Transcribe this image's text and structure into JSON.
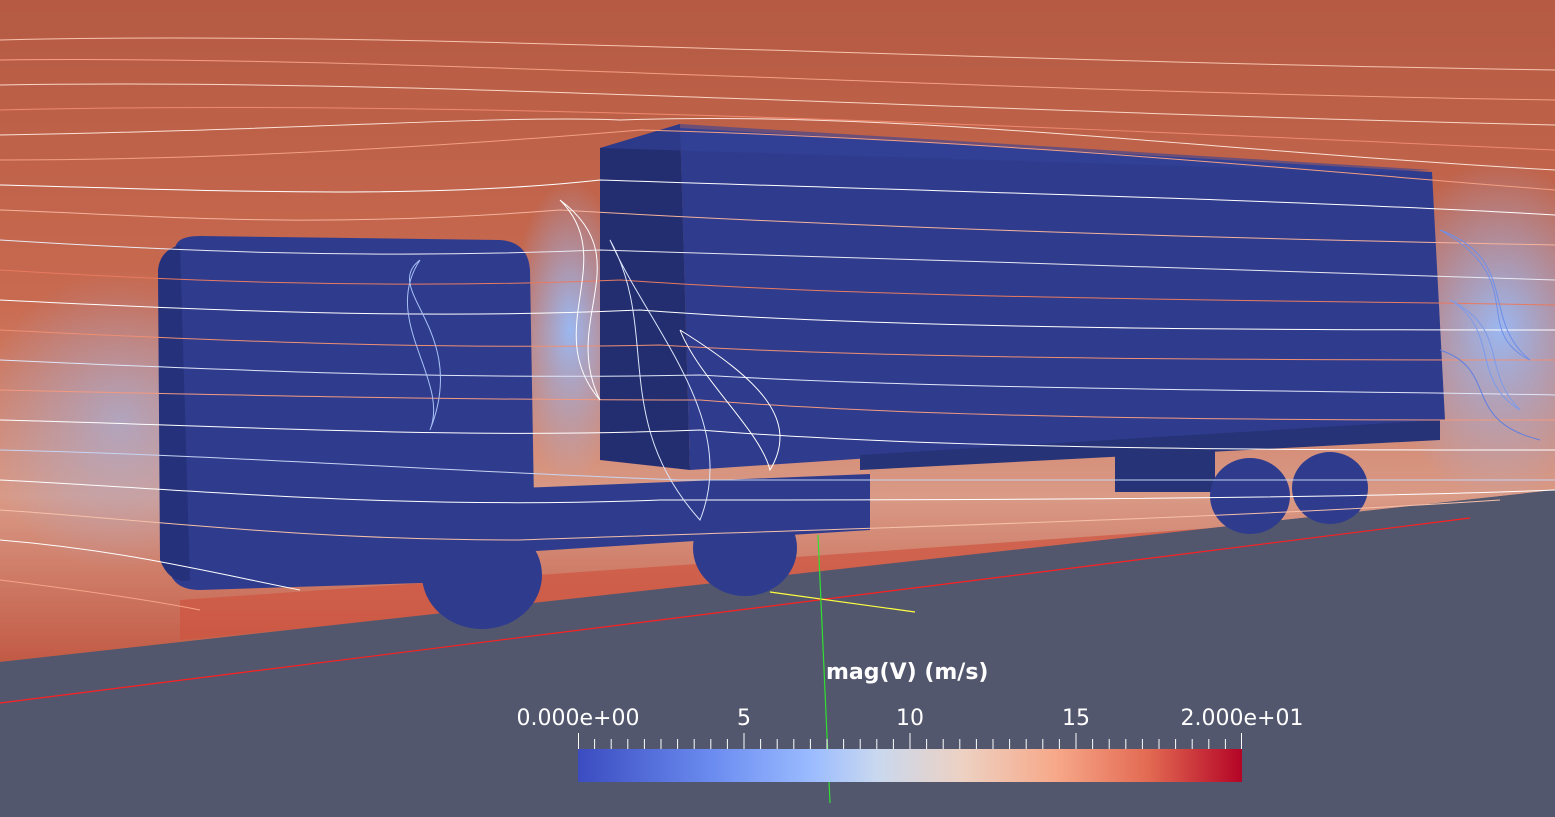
{
  "view": {
    "field_name": "mag(V) (m/s)",
    "colormap": "cool-to-warm",
    "colors": {
      "background": "#52576e",
      "vehicle": "#2f3c8e",
      "range_low": "#3b4cc0",
      "range_high": "#b40426",
      "axis_x": "#ff2020",
      "axis_y": "#ffff40",
      "axis_z": "#30e030"
    }
  },
  "legend": {
    "title": "mag(V) (m/s)",
    "range": [
      0,
      20
    ],
    "labels": [
      {
        "value": 0,
        "text": "0.000e+00"
      },
      {
        "value": 5,
        "text": "5"
      },
      {
        "value": 10,
        "text": "10"
      },
      {
        "value": 15,
        "text": "15"
      },
      {
        "value": 20,
        "text": "2.000e+01"
      }
    ]
  }
}
